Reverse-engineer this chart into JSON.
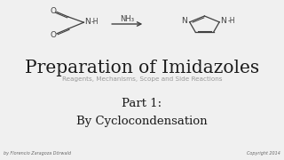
{
  "bg_color": "#f0f0f0",
  "title": "Preparation of Imidazoles",
  "subtitle": "Reagents, Mechanisms, Scope and Side Reactions",
  "part_text": "Part 1:\nBy Cyclocondensation",
  "footer_left": "by Florencio Zaragoza Dörwald",
  "footer_right": "Copyright 2014",
  "title_fontsize": 14.5,
  "subtitle_fontsize": 5.2,
  "part_fontsize": 9.5,
  "footer_fontsize": 3.5,
  "text_color": "#1a1a1a",
  "subtitle_color": "#999999",
  "footer_color": "#666666",
  "gray": "#404040"
}
